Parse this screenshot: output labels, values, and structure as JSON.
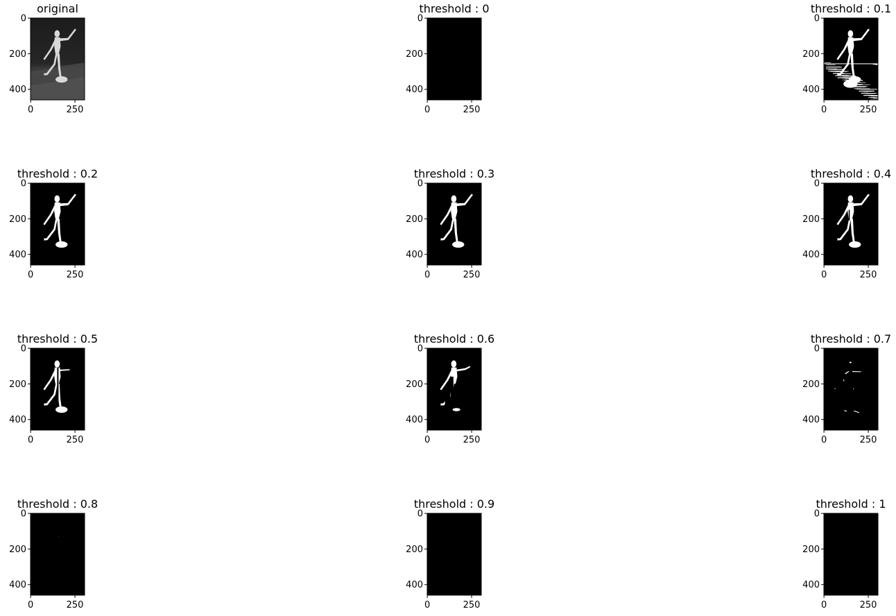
{
  "chart_data": [
    {
      "type": "image",
      "title": "original",
      "xticks": [
        "0",
        "250"
      ],
      "yticks": [
        "0",
        "200",
        "400"
      ],
      "content": "grayscale-photo-wooden-mannequin",
      "white_fraction": null
    },
    {
      "type": "image",
      "title": "threshold : 0",
      "xticks": [
        "0",
        "250"
      ],
      "yticks": [
        "0",
        "200",
        "400"
      ],
      "content": "binary-mask",
      "white_fraction": 0
    },
    {
      "type": "image",
      "title": "threshold : 0.1",
      "xticks": [
        "0",
        "250"
      ],
      "yticks": [
        "0",
        "200",
        "400"
      ],
      "content": "binary-mask",
      "white_fraction": 0.3
    },
    {
      "type": "image",
      "title": "threshold : 0.2",
      "xticks": [
        "0",
        "250"
      ],
      "yticks": [
        "0",
        "200",
        "400"
      ],
      "content": "binary-mask",
      "white_fraction": 0.1
    },
    {
      "type": "image",
      "title": "threshold : 0.3",
      "xticks": [
        "0",
        "250"
      ],
      "yticks": [
        "0",
        "200",
        "400"
      ],
      "content": "binary-mask",
      "white_fraction": 0.09
    },
    {
      "type": "image",
      "title": "threshold : 0.4",
      "xticks": [
        "0",
        "250"
      ],
      "yticks": [
        "0",
        "200",
        "400"
      ],
      "content": "binary-mask",
      "white_fraction": 0.07
    },
    {
      "type": "image",
      "title": "threshold : 0.5",
      "xticks": [
        "0",
        "250"
      ],
      "yticks": [
        "0",
        "200",
        "400"
      ],
      "content": "binary-mask",
      "white_fraction": 0.05
    },
    {
      "type": "image",
      "title": "threshold : 0.6",
      "xticks": [
        "0",
        "250"
      ],
      "yticks": [
        "0",
        "200",
        "400"
      ],
      "content": "binary-mask",
      "white_fraction": 0.035
    },
    {
      "type": "image",
      "title": "threshold : 0.7",
      "xticks": [
        "0",
        "250"
      ],
      "yticks": [
        "0",
        "200",
        "400"
      ],
      "content": "binary-mask",
      "white_fraction": 0.01
    },
    {
      "type": "image",
      "title": "threshold : 0.8",
      "xticks": [
        "0",
        "250"
      ],
      "yticks": [
        "0",
        "200",
        "400"
      ],
      "content": "binary-mask",
      "white_fraction": 0.0005
    },
    {
      "type": "image",
      "title": "threshold : 0.9",
      "xticks": [
        "0",
        "250"
      ],
      "yticks": [
        "0",
        "200",
        "400"
      ],
      "content": "binary-mask",
      "white_fraction": 0
    },
    {
      "type": "image",
      "title": "threshold : 1",
      "xticks": [
        "0",
        "250"
      ],
      "yticks": [
        "0",
        "200",
        "400"
      ],
      "content": "binary-mask",
      "white_fraction": 0
    }
  ],
  "image_shape": {
    "height": 460,
    "width": 305
  },
  "colors": {
    "background": "#ffffff",
    "mask_on": "#ffffff",
    "mask_off": "#000000"
  }
}
